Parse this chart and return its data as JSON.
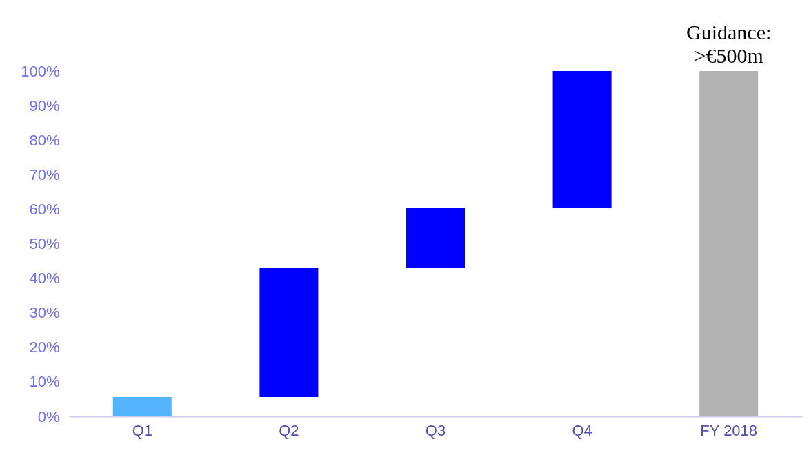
{
  "chart_data": {
    "type": "bar",
    "categories": [
      "Q1",
      "Q2",
      "Q3",
      "Q4",
      "FY 2018"
    ],
    "values": [
      5.6,
      37.5,
      17.2,
      39.7,
      100
    ],
    "base": [
      0,
      5.6,
      43.1,
      60.3,
      0
    ],
    "colors": [
      "#55b4ff",
      "#0000ff",
      "#0000ff",
      "#0000ff",
      "#b3b3b3"
    ],
    "ylim": [
      0,
      100
    ],
    "yticks": [
      {
        "value": 0,
        "label": "0%"
      },
      {
        "value": 10,
        "label": "10%"
      },
      {
        "value": 20,
        "label": "20%"
      },
      {
        "value": 30,
        "label": "30%"
      },
      {
        "value": 40,
        "label": "40%"
      },
      {
        "value": 50,
        "label": "50%"
      },
      {
        "value": 60,
        "label": "60%"
      },
      {
        "value": 70,
        "label": "70%"
      },
      {
        "value": 80,
        "label": "80%"
      },
      {
        "value": 90,
        "label": "90%"
      },
      {
        "value": 100,
        "label": "100%"
      }
    ],
    "grid": false,
    "annotations": [
      {
        "text": "Guidance: >€500m",
        "x": "FY 2018",
        "y": 100
      }
    ]
  }
}
